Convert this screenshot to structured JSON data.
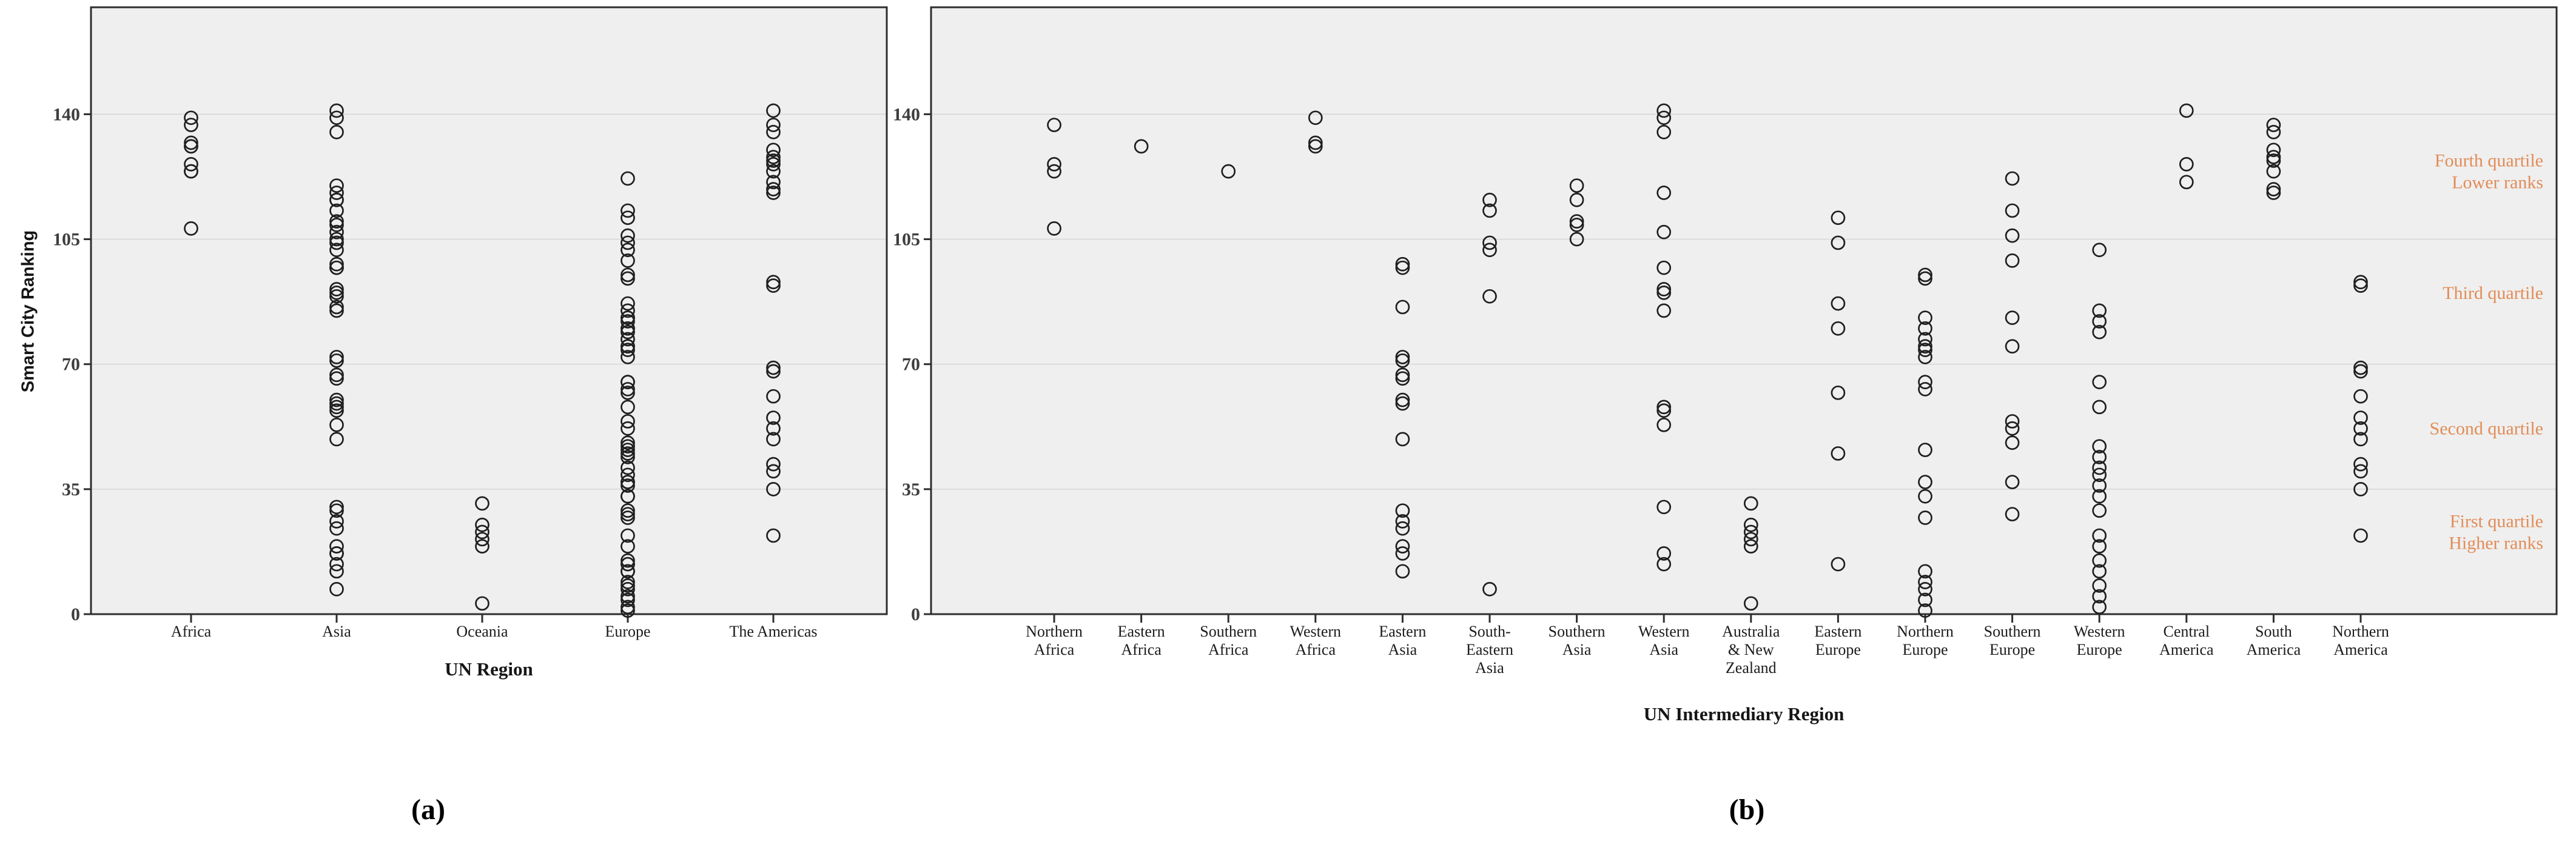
{
  "figure": {
    "background": "#ffffff",
    "plot_background": "#efefef",
    "grid_color": "#d7d7d7",
    "frame_color": "#2e2e2e",
    "point_color": "#1f1f1f",
    "tick_label_color": "#3d3d3d",
    "annotation_color": "#e28c57",
    "captions": {
      "a": "(a)",
      "b": "(b)"
    }
  },
  "chart_data": [
    {
      "type": "scatter",
      "panel": "a",
      "title": "",
      "xlabel": "UN Region",
      "ylabel": "Smart City Ranking",
      "ylim": [
        0,
        170
      ],
      "yticks": [
        0,
        35,
        70,
        105,
        140
      ],
      "grid": true,
      "legend": "none",
      "marker": "open-circle",
      "categories": [
        {
          "label": [
            "Africa"
          ],
          "values": [
            139,
            137,
            132,
            131,
            131,
            126,
            124,
            124,
            108
          ]
        },
        {
          "label": [
            "Asia"
          ],
          "values": [
            141,
            139,
            135,
            120,
            118,
            116,
            116,
            113,
            110,
            109,
            107,
            105,
            104,
            102,
            98,
            97,
            97,
            91,
            90,
            89,
            86,
            85,
            72,
            71,
            67,
            66,
            60,
            59,
            58,
            57,
            53,
            49,
            30,
            29,
            26,
            24,
            19,
            17,
            17,
            14,
            12,
            7
          ]
        },
        {
          "label": [
            "Oceania"
          ],
          "values": [
            31,
            25,
            23,
            21,
            19,
            3
          ]
        },
        {
          "label": [
            "Europe"
          ],
          "values": [
            122,
            113,
            111,
            106,
            104,
            102,
            99,
            95,
            94,
            87,
            85,
            83,
            83,
            82,
            80,
            80,
            79,
            77,
            75,
            75,
            74,
            72,
            65,
            65,
            63,
            62,
            58,
            54,
            52,
            48,
            47,
            46,
            45,
            44,
            41,
            39,
            37,
            37,
            36,
            33,
            33,
            29,
            28,
            27,
            22,
            19,
            15,
            14,
            14,
            12,
            12,
            9,
            8,
            7,
            5,
            4,
            2,
            1
          ]
        },
        {
          "label": [
            "The Americas"
          ],
          "values": [
            141,
            137,
            135,
            130,
            128,
            127,
            126,
            124,
            121,
            119,
            118,
            93,
            92,
            69,
            68,
            61,
            55,
            52,
            49,
            42,
            40,
            35,
            22
          ]
        }
      ]
    },
    {
      "type": "scatter",
      "panel": "b",
      "title": "",
      "xlabel": "UN Intermediary Region",
      "ylabel": "",
      "ylim": [
        0,
        170
      ],
      "yticks": [
        0,
        35,
        70,
        105,
        140
      ],
      "grid": true,
      "legend": "none",
      "marker": "open-circle",
      "categories": [
        {
          "label": [
            "Northern",
            "Africa"
          ],
          "values": [
            137,
            126,
            124,
            108
          ]
        },
        {
          "label": [
            "Eastern",
            "Africa"
          ],
          "values": [
            131
          ]
        },
        {
          "label": [
            "Southern",
            "Africa"
          ],
          "values": [
            124
          ]
        },
        {
          "label": [
            "Western",
            "Africa"
          ],
          "values": [
            139,
            132,
            131
          ]
        },
        {
          "label": [
            "Eastern",
            "Asia"
          ],
          "values": [
            98,
            97,
            86,
            72,
            71,
            67,
            66,
            60,
            59,
            49,
            29,
            26,
            24,
            19,
            17,
            12
          ]
        },
        {
          "label": [
            "South-",
            "Eastern",
            "Asia"
          ],
          "values": [
            116,
            113,
            104,
            102,
            89,
            7
          ]
        },
        {
          "label": [
            "Southern",
            "Asia"
          ],
          "values": [
            120,
            116,
            110,
            109,
            105
          ]
        },
        {
          "label": [
            "Western",
            "Asia"
          ],
          "values": [
            141,
            139,
            135,
            118,
            107,
            97,
            91,
            90,
            85,
            58,
            57,
            53,
            30,
            17,
            14
          ]
        },
        {
          "label": [
            "Australia",
            "& New",
            "Zealand"
          ],
          "values": [
            31,
            25,
            23,
            21,
            19,
            3
          ]
        },
        {
          "label": [
            "Eastern",
            "Europe"
          ],
          "values": [
            111,
            104,
            87,
            80,
            62,
            45,
            14
          ]
        },
        {
          "label": [
            "Northern",
            "Europe"
          ],
          "values": [
            95,
            94,
            83,
            80,
            77,
            75,
            74,
            72,
            65,
            63,
            46,
            37,
            33,
            27,
            12,
            9,
            7,
            4,
            1
          ]
        },
        {
          "label": [
            "Southern",
            "Europe"
          ],
          "values": [
            122,
            113,
            106,
            99,
            83,
            75,
            54,
            52,
            48,
            37,
            28
          ]
        },
        {
          "label": [
            "Western",
            "Europe"
          ],
          "values": [
            102,
            85,
            82,
            79,
            65,
            58,
            47,
            44,
            41,
            39,
            36,
            33,
            29,
            22,
            19,
            15,
            12,
            8,
            5,
            2
          ]
        },
        {
          "label": [
            "Central",
            "America"
          ],
          "values": [
            141,
            126,
            121
          ]
        },
        {
          "label": [
            "South",
            "America"
          ],
          "values": [
            137,
            135,
            130,
            128,
            127,
            124,
            119,
            118
          ]
        },
        {
          "label": [
            "Northern",
            "America"
          ],
          "values": [
            93,
            92,
            69,
            68,
            61,
            55,
            52,
            49,
            42,
            40,
            35,
            22
          ]
        }
      ],
      "annotations": [
        {
          "lines": [
            "Fourth quartile",
            "Lower ranks"
          ],
          "y": 124
        },
        {
          "lines": [
            "Third quartile"
          ],
          "y": 90
        },
        {
          "lines": [
            "Second quartile"
          ],
          "y": 52
        },
        {
          "lines": [
            "First quartile",
            "Higher ranks"
          ],
          "y": 23
        }
      ]
    }
  ]
}
